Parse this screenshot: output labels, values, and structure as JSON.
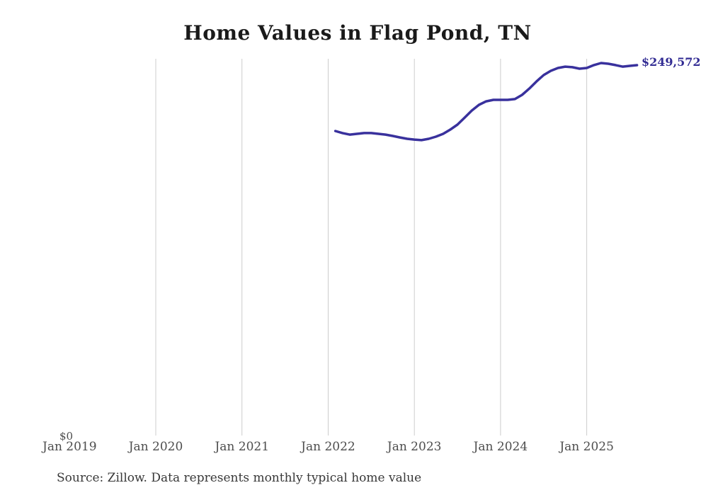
{
  "chart": {
    "title": "Home Values in Flag Pond, TN",
    "y_zero_label": "$0",
    "latest_value_label": "$249,572",
    "source": "Source: Zillow. Data represents monthly typical home value",
    "colors": {
      "line": "#39319d",
      "grid": "#cccccc",
      "tick_text": "#4d4d4d",
      "title_text": "#1a1a1a",
      "source_text": "#383838",
      "latest_label_text": "#332d94"
    }
  },
  "chart_data": {
    "type": "line",
    "title": "Home Values in Flag Pond, TN",
    "series_name": "Typical home value (monthly)",
    "x": [
      "Feb 2022",
      "Mar 2022",
      "Apr 2022",
      "May 2022",
      "Jun 2022",
      "Jul 2022",
      "Aug 2022",
      "Sep 2022",
      "Oct 2022",
      "Nov 2022",
      "Dec 2022",
      "Jan 2023",
      "Feb 2023",
      "Mar 2023",
      "Apr 2023",
      "May 2023",
      "Jun 2023",
      "Jul 2023",
      "Aug 2023",
      "Sep 2023",
      "Oct 2023",
      "Nov 2023",
      "Dec 2023",
      "Jan 2024",
      "Feb 2024",
      "Mar 2024",
      "Apr 2024",
      "May 2024",
      "Jun 2024",
      "Jul 2024",
      "Aug 2024",
      "Sep 2024",
      "Oct 2024",
      "Nov 2024",
      "Dec 2024",
      "Jan 2025",
      "Feb 2025",
      "Mar 2025",
      "Apr 2025",
      "May 2025",
      "Jun 2025",
      "Jul 2025",
      "Aug 2025"
    ],
    "values": [
      205800,
      204400,
      203400,
      203900,
      204400,
      204400,
      203900,
      203400,
      202500,
      201500,
      200600,
      200100,
      199700,
      200600,
      202000,
      203900,
      206700,
      210000,
      214700,
      219400,
      223200,
      225500,
      226500,
      226500,
      226500,
      227000,
      229800,
      234000,
      238700,
      243000,
      245800,
      247700,
      248600,
      248200,
      247200,
      247700,
      249600,
      251000,
      250500,
      249600,
      248600,
      249100,
      249572
    ],
    "x_tick_labels": [
      "Jan 2019",
      "Jan 2020",
      "Jan 2021",
      "Jan 2022",
      "Jan 2023",
      "Jan 2024",
      "Jan 2025"
    ],
    "y_axis": {
      "min_label": "$0",
      "ylim": [
        0,
        260000
      ]
    },
    "annotation": "$249,572",
    "legend": "none",
    "grid": "vertical gridlines at each January, no horizontal gridlines, no axis lines",
    "xlabel": "",
    "ylabel": ""
  }
}
